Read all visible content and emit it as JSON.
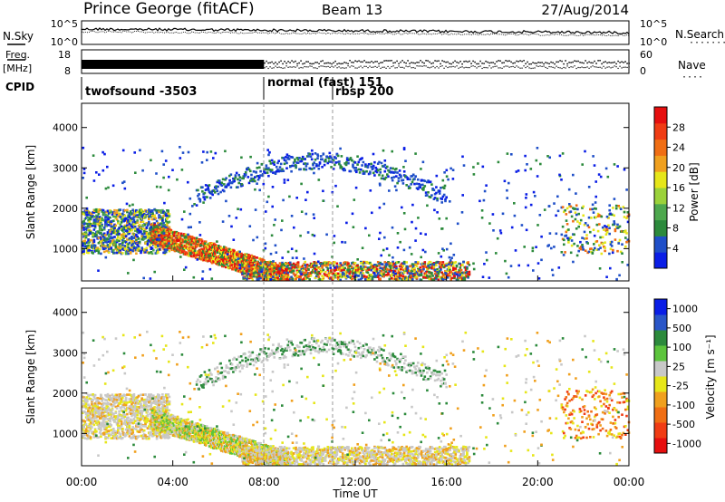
{
  "header": {
    "station": "Prince George (fitACF)",
    "beam": "Beam 13",
    "date": "27/Aug/2014"
  },
  "left_labels": {
    "nsky": "N.Sky",
    "freq": "Freq.",
    "freq_unit": "[MHz]",
    "cpid": "CPID"
  },
  "right_labels": {
    "nsearch": "N.Search",
    "nave": "Nave"
  },
  "cpid_segments": [
    {
      "label": "twofsound -3503"
    },
    {
      "label": "normal (fast) 151"
    },
    {
      "label": "rbsp 200"
    }
  ],
  "colors": {
    "power_scale": [
      "#0a1ee6",
      "#1f4fc8",
      "#2c8a3c",
      "#4ea84e",
      "#9bd23a",
      "#e6e619",
      "#f0a01e",
      "#f06e14",
      "#f03c14",
      "#e60f0f"
    ],
    "velocity_scale": [
      "#0a1ee6",
      "#2a56c8",
      "#2c8a3c",
      "#5cc43c",
      "#c8c8c8",
      "#e6e619",
      "#f0a01e",
      "#f06e14",
      "#f03c14",
      "#e60f0f"
    ]
  },
  "chart_data": [
    {
      "type": "line",
      "name": "noise",
      "left_axis": {
        "label": "N.Sky",
        "ticks": [
          "10^5",
          "10^0"
        ]
      },
      "right_axis": {
        "label": "N.Search",
        "ticks": [
          "10^5",
          "10^0"
        ]
      }
    },
    {
      "type": "scatter",
      "name": "frequency",
      "left_axis": {
        "label": "Freq. [MHz]",
        "ticks": [
          "18",
          "8"
        ]
      },
      "right_axis": {
        "label": "Nave",
        "ticks": [
          "60",
          "0"
        ]
      }
    },
    {
      "type": "heatmap",
      "name": "power",
      "ylabel": "Slant Range [km]",
      "yticks": [
        "1000",
        "2000",
        "3000",
        "4000"
      ],
      "ylim": [
        200,
        4600
      ],
      "xlim": [
        0,
        24
      ],
      "colorbar": {
        "label": "Power [dB]",
        "ticks": [
          "4",
          "8",
          "12",
          "16",
          "20",
          "24",
          "28"
        ]
      }
    },
    {
      "type": "heatmap",
      "name": "velocity",
      "ylabel": "Slant Range [km]",
      "yticks": [
        "1000",
        "2000",
        "3000",
        "4000"
      ],
      "ylim": [
        200,
        4600
      ],
      "xlim": [
        0,
        24
      ],
      "xlabel": "Time UT",
      "xticks": [
        "00:00",
        "04:00",
        "08:00",
        "12:00",
        "16:00",
        "20:00",
        "00:00"
      ],
      "colorbar": {
        "label": "Velocity [m s⁻¹]",
        "ticks": [
          "1000",
          "500",
          "100",
          "25",
          "-25",
          "-100",
          "-500",
          "-1000"
        ]
      }
    }
  ]
}
